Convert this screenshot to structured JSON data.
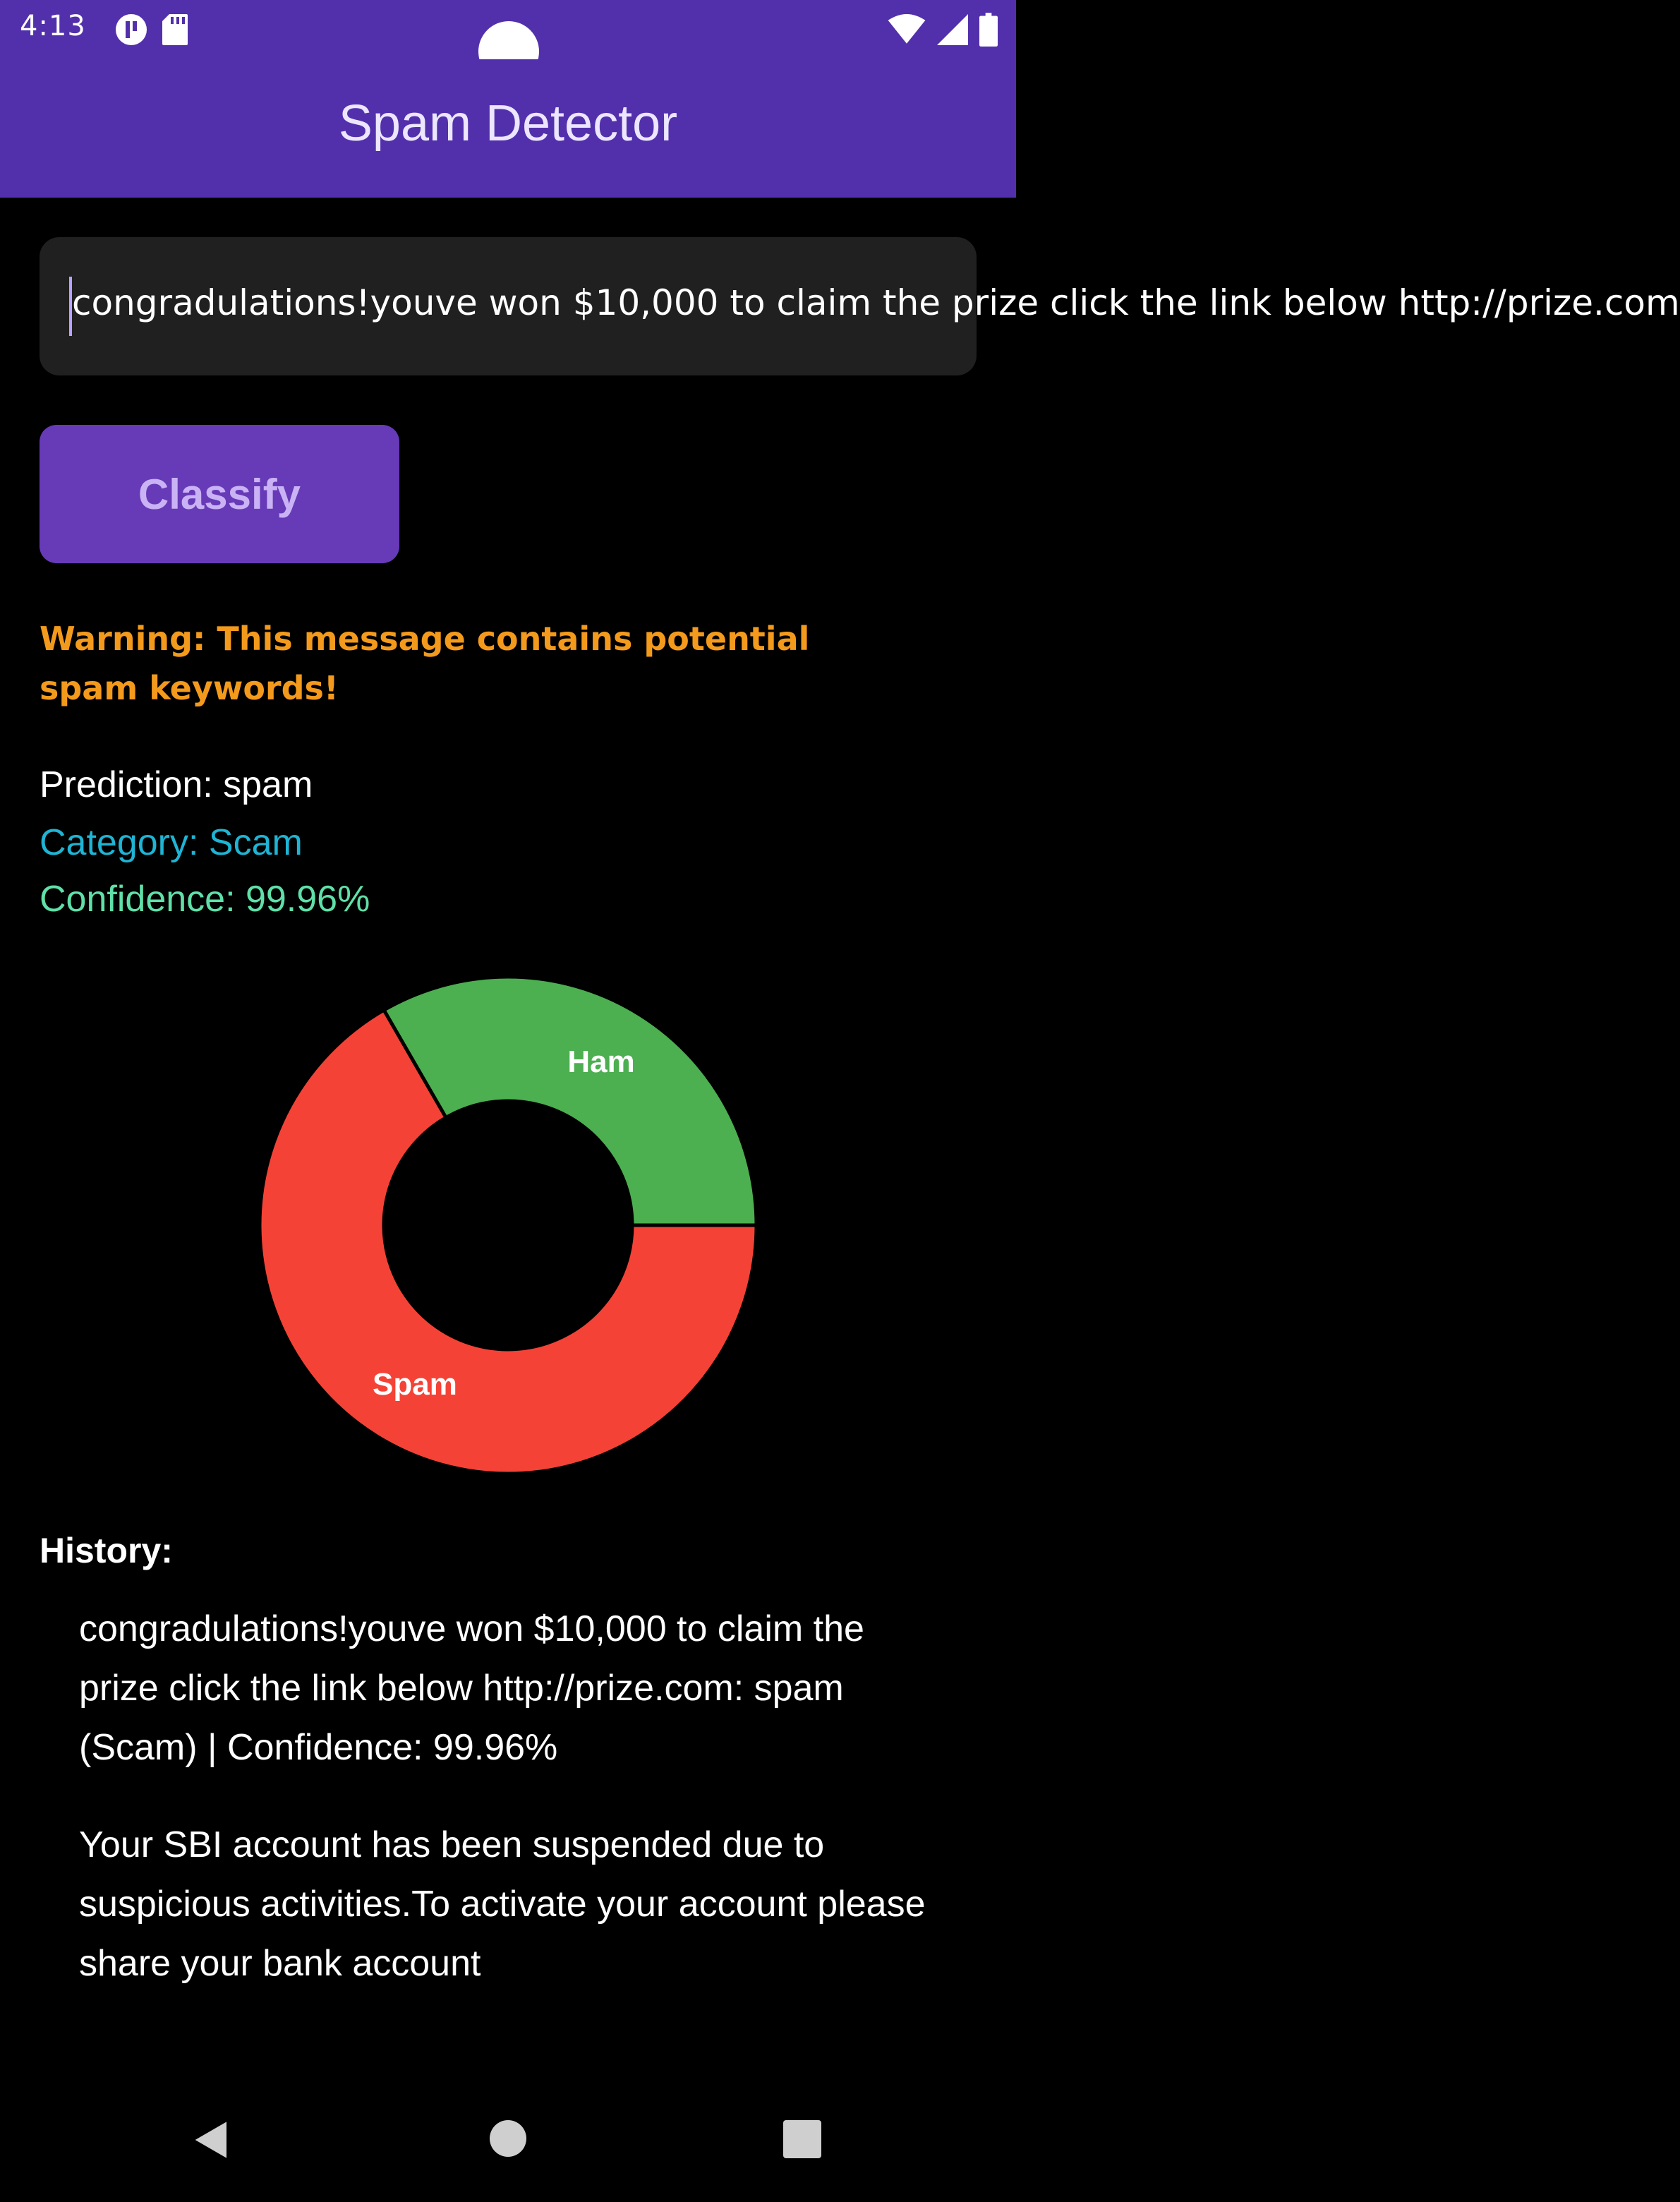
{
  "status_bar": {
    "time": "4:13",
    "left_icons": [
      "app-notification-icon",
      "sd-card-icon"
    ],
    "right_icons": [
      "wifi-icon",
      "cell-signal-icon",
      "battery-icon"
    ]
  },
  "app_bar": {
    "title": "Spam Detector",
    "color": "#5330ab"
  },
  "input": {
    "value": "congradulations!youve won $10,000 to claim the prize click the link below http://prize.com"
  },
  "classify_button": {
    "label": "Classify",
    "color": "#673ab7"
  },
  "warning": {
    "text": "Warning: This message contains potential spam keywords!",
    "color": "#f39a1c"
  },
  "result": {
    "prediction": "Prediction: spam",
    "category": "Category: Scam",
    "confidence": "Confidence: 99.96%"
  },
  "chart_data": {
    "type": "pie",
    "title": "",
    "style": "donut",
    "slices": [
      {
        "label": "Ham",
        "value": 33.33,
        "color": "#4caf50"
      },
      {
        "label": "Spam",
        "value": 66.67,
        "color": "#f44336"
      }
    ]
  },
  "history": {
    "title": "History:",
    "items": [
      "congradulations!youve won $10,000 to claim the prize click the link below http://prize.com: spam (Scam) | Confidence: 99.96%",
      "Your SBI account has been suspended due to suspicious activities.To activate your account please share your bank account"
    ]
  },
  "nav_bar": {
    "icons": [
      "back-icon",
      "home-icon",
      "recents-icon"
    ]
  }
}
